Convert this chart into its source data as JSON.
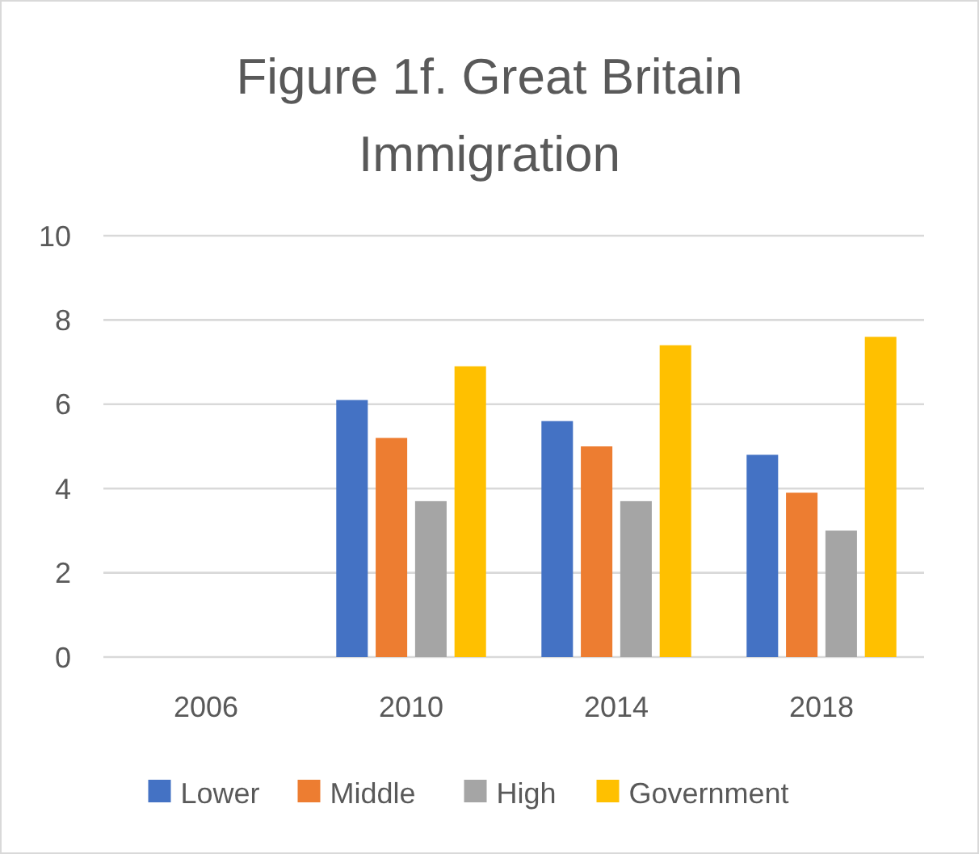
{
  "chart_data": {
    "type": "bar",
    "title": "Figure 1f. Great Britain Immigration",
    "categories": [
      "2006",
      "2010",
      "2014",
      "2018"
    ],
    "series": [
      {
        "name": "Lower",
        "color": "#4472c4",
        "values": [
          null,
          6.1,
          5.6,
          4.8
        ]
      },
      {
        "name": "Middle",
        "color": "#ed7d31",
        "values": [
          null,
          5.2,
          5.0,
          3.9
        ]
      },
      {
        "name": "High",
        "color": "#a5a5a5",
        "values": [
          null,
          3.7,
          3.7,
          3.0
        ]
      },
      {
        "name": "Government",
        "color": "#ffc000",
        "values": [
          null,
          6.9,
          7.4,
          7.6
        ]
      }
    ],
    "ylim": [
      0,
      10
    ],
    "yticks": [
      0,
      2,
      4,
      6,
      8,
      10
    ],
    "grid": "y",
    "legend": "bottom"
  }
}
